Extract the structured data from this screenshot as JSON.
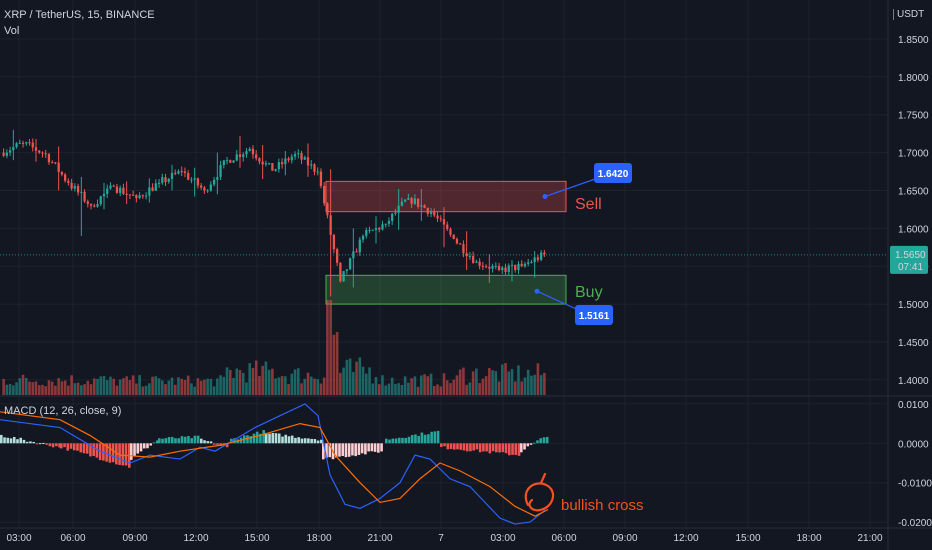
{
  "header": {
    "symbol": "XRP / TetherUS, 15, BINANCE",
    "volume_label": "Vol",
    "macd_label": "MACD (12, 26, close, 9)"
  },
  "price_axis": {
    "currency_label": "USDT",
    "ticks": [
      "1.8500",
      "1.8000",
      "1.7500",
      "1.7000",
      "1.6500",
      "1.6000",
      "1.5500",
      "1.5000",
      "1.4500",
      "1.4000"
    ],
    "last_price": "1.5650",
    "countdown": "07:41"
  },
  "macd_axis": {
    "ticks": [
      "0.0100",
      "0.0000",
      "-0.0100",
      "-0.0200"
    ]
  },
  "time_axis": {
    "labels": [
      "03:00",
      "06:00",
      "09:00",
      "12:00",
      "15:00",
      "18:00",
      "21:00",
      "7",
      "03:00",
      "06:00",
      "09:00",
      "12:00",
      "15:00",
      "18:00",
      "21:00"
    ]
  },
  "annotations": {
    "sell_label": "Sell",
    "buy_label": "Buy",
    "sell_price": "1.6420",
    "buy_price": "1.5161",
    "bullish_cross": "bullish cross"
  },
  "colors": {
    "background": "#131722",
    "up": "#26a69a",
    "down": "#ef5350",
    "callout": "#2962ff",
    "sell_zone": "#ef5350",
    "buy_zone": "#4caf50",
    "macd_line": "#2962ff",
    "signal_line": "#ff6d00",
    "annotation": "#f4511e"
  },
  "chart_data": {
    "type": "candlestick",
    "symbol": "XRP / TetherUS",
    "interval": "15",
    "ylim": [
      1.38,
      1.875
    ],
    "sell_zone": [
      1.622,
      1.662
    ],
    "buy_zone": [
      1.5,
      1.538
    ],
    "segments": [
      {
        "o": 1.7,
        "h": 1.73,
        "l": 1.69,
        "c": 1.712
      },
      {
        "o": 1.712,
        "h": 1.718,
        "l": 1.688,
        "c": 1.698
      },
      {
        "o": 1.698,
        "h": 1.708,
        "l": 1.65,
        "c": 1.66
      },
      {
        "o": 1.66,
        "h": 1.668,
        "l": 1.59,
        "c": 1.63
      },
      {
        "o": 1.63,
        "h": 1.66,
        "l": 1.625,
        "c": 1.655
      },
      {
        "o": 1.655,
        "h": 1.662,
        "l": 1.632,
        "c": 1.64
      },
      {
        "o": 1.64,
        "h": 1.666,
        "l": 1.634,
        "c": 1.66
      },
      {
        "o": 1.66,
        "h": 1.684,
        "l": 1.65,
        "c": 1.675
      },
      {
        "o": 1.675,
        "h": 1.68,
        "l": 1.642,
        "c": 1.65
      },
      {
        "o": 1.65,
        "h": 1.7,
        "l": 1.645,
        "c": 1.69
      },
      {
        "o": 1.69,
        "h": 1.722,
        "l": 1.68,
        "c": 1.705
      },
      {
        "o": 1.705,
        "h": 1.71,
        "l": 1.665,
        "c": 1.676
      },
      {
        "o": 1.676,
        "h": 1.702,
        "l": 1.67,
        "c": 1.698
      },
      {
        "o": 1.698,
        "h": 1.712,
        "l": 1.668,
        "c": 1.675
      },
      {
        "o": 1.675,
        "h": 1.678,
        "l": 1.51,
        "c": 1.53
      },
      {
        "o": 1.53,
        "h": 1.6,
        "l": 1.522,
        "c": 1.59
      },
      {
        "o": 1.59,
        "h": 1.616,
        "l": 1.58,
        "c": 1.606
      },
      {
        "o": 1.606,
        "h": 1.652,
        "l": 1.598,
        "c": 1.64
      },
      {
        "o": 1.64,
        "h": 1.652,
        "l": 1.61,
        "c": 1.622
      },
      {
        "o": 1.622,
        "h": 1.628,
        "l": 1.575,
        "c": 1.586
      },
      {
        "o": 1.586,
        "h": 1.596,
        "l": 1.545,
        "c": 1.556
      },
      {
        "o": 1.556,
        "h": 1.566,
        "l": 1.528,
        "c": 1.545
      },
      {
        "o": 1.545,
        "h": 1.558,
        "l": 1.53,
        "c": 1.55
      },
      {
        "o": 1.55,
        "h": 1.57,
        "l": 1.535,
        "c": 1.566
      }
    ],
    "macd": {
      "ylim": [
        -0.0215,
        0.0115
      ],
      "macd_line": [
        [
          0,
          0.006
        ],
        [
          60,
          0.004
        ],
        [
          100,
          -0.002
        ],
        [
          130,
          -0.005
        ],
        [
          150,
          -0.003
        ],
        [
          180,
          -0.004
        ],
        [
          200,
          -0.001
        ],
        [
          215,
          -0.002
        ],
        [
          235,
          0.001
        ],
        [
          255,
          0.004
        ],
        [
          280,
          0.007
        ],
        [
          305,
          0.01
        ],
        [
          318,
          0.007
        ],
        [
          330,
          -0.008
        ],
        [
          345,
          -0.0155
        ],
        [
          360,
          -0.0165
        ],
        [
          380,
          -0.014
        ],
        [
          400,
          -0.01
        ],
        [
          415,
          -0.003
        ],
        [
          430,
          -0.004
        ],
        [
          450,
          -0.009
        ],
        [
          470,
          -0.011
        ],
        [
          485,
          -0.015
        ],
        [
          500,
          -0.019
        ],
        [
          515,
          -0.0205
        ],
        [
          530,
          -0.02
        ],
        [
          545,
          -0.017
        ]
      ],
      "signal_line": [
        [
          0,
          0.008
        ],
        [
          60,
          0.006
        ],
        [
          90,
          0.002
        ],
        [
          120,
          -0.003
        ],
        [
          150,
          -0.0035
        ],
        [
          180,
          -0.002
        ],
        [
          220,
          -0.0005
        ],
        [
          260,
          0.002
        ],
        [
          300,
          0.005
        ],
        [
          320,
          0.004
        ],
        [
          335,
          -0.003
        ],
        [
          360,
          -0.01
        ],
        [
          380,
          -0.015
        ],
        [
          400,
          -0.014
        ],
        [
          420,
          -0.009
        ],
        [
          440,
          -0.005
        ],
        [
          460,
          -0.007
        ],
        [
          490,
          -0.011
        ],
        [
          515,
          -0.016
        ],
        [
          535,
          -0.0185
        ],
        [
          548,
          -0.0168
        ]
      ],
      "histogram": [
        {
          "x": [
            0,
            60
          ],
          "from": 0.002,
          "to": -0.001
        },
        {
          "x": [
            60,
            130
          ],
          "from": -0.001,
          "to": -0.006
        },
        {
          "x": [
            130,
            158
          ],
          "from": -0.004,
          "to": 0.0008
        },
        {
          "x": [
            158,
            200
          ],
          "from": 0.0012,
          "to": 0.0016
        },
        {
          "x": [
            200,
            230
          ],
          "from": 0.001,
          "to": -0.0012
        },
        {
          "x": [
            230,
            265
          ],
          "from": 0.001,
          "to": 0.003
        },
        {
          "x": [
            265,
            322
          ],
          "from": 0.0025,
          "to": 0.001
        },
        {
          "x": [
            322,
            385
          ],
          "from": -0.004,
          "to": -0.002
        },
        {
          "x": [
            385,
            440
          ],
          "from": 0.001,
          "to": 0.003
        },
        {
          "x": [
            440,
            520
          ],
          "from": -0.001,
          "to": -0.003
        },
        {
          "x": [
            520,
            548
          ],
          "from": -0.002,
          "to": 0.002
        }
      ]
    },
    "volume_profile": [
      {
        "x": [
          0,
          110
        ],
        "lo": 8,
        "hi": 22
      },
      {
        "x": [
          110,
          225
        ],
        "lo": 8,
        "hi": 20
      },
      {
        "x": [
          225,
          280
        ],
        "lo": 12,
        "hi": 35
      },
      {
        "x": [
          280,
          326
        ],
        "lo": 10,
        "hi": 30
      },
      {
        "x": [
          326,
          340
        ],
        "lo": 25,
        "hi": 95
      },
      {
        "x": [
          340,
          380
        ],
        "lo": 10,
        "hi": 38
      },
      {
        "x": [
          380,
          460
        ],
        "lo": 8,
        "hi": 22
      },
      {
        "x": [
          460,
          548
        ],
        "lo": 10,
        "hi": 32
      }
    ]
  }
}
